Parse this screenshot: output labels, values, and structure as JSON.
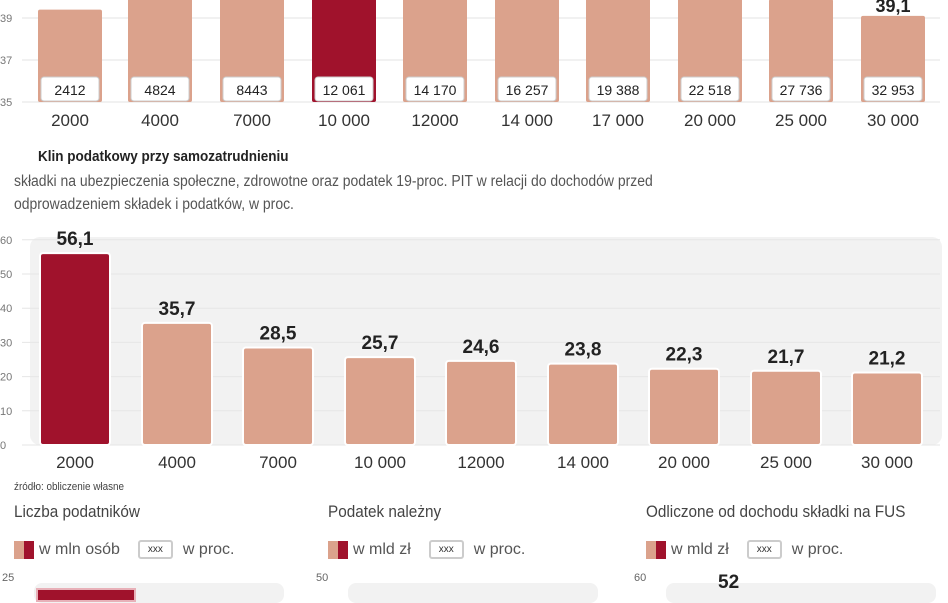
{
  "colors": {
    "bar": "#dba28c",
    "highlight": "#a0122c",
    "panel": "#f2f2f2",
    "label_box": "#ffffff"
  },
  "chart_data": [
    {
      "type": "bar",
      "categories": [
        "2000",
        "4000",
        "7000",
        "10 000",
        "12000",
        "14 000",
        "17 000",
        "20 000",
        "25 000",
        "30 000"
      ],
      "values": [
        39.4,
        null,
        null,
        null,
        null,
        null,
        null,
        null,
        39.9,
        39.1
      ],
      "data_labels": [
        "",
        "",
        "",
        "",
        "",
        "",
        "",
        "",
        "",
        "39,1"
      ],
      "box_labels": [
        "2412",
        "4824",
        "8443",
        "12 061",
        "14 170",
        "16 257",
        "19 388",
        "22 518",
        "27 736",
        "32 953"
      ],
      "highlight_index": 3,
      "yticks": [
        "35",
        "37",
        "39"
      ],
      "ylim": [
        35,
        40
      ],
      "grid": true
    },
    {
      "type": "bar",
      "title": "Klin podatkowy przy samozatrudnieniu",
      "subtitle_lines": [
        "składki na ubezpieczenia społeczne, zdrowotne oraz podatek 19-proc. PIT w relacji do dochodów przed",
        "odprowadzeniem składek i podatków, w proc."
      ],
      "categories": [
        "2000",
        "4000",
        "7000",
        "10 000",
        "12000",
        "14 000",
        "20 000",
        "25 000",
        "30 000"
      ],
      "values": [
        56.1,
        35.7,
        28.5,
        25.7,
        24.6,
        23.8,
        22.3,
        21.7,
        21.2
      ],
      "data_labels": [
        "56,1",
        "35,7",
        "28,5",
        "25,7",
        "24,6",
        "23,8",
        "22,3",
        "21,7",
        "21,2"
      ],
      "highlight_index": 0,
      "yticks": [
        "0",
        "10",
        "20",
        "30",
        "40",
        "50",
        "60"
      ],
      "ylim": [
        0,
        60
      ],
      "grid": true,
      "source": "źródło: obliczenie własne"
    }
  ],
  "bottom_panels": [
    {
      "title": "Liczba podatników",
      "legend_unit": "w mln osób",
      "legend_box": "xxx",
      "legend_pct": "w proc.",
      "ytick": "25"
    },
    {
      "title": "Podatek należny",
      "legend_unit": "w mld zł",
      "legend_box": "xxx",
      "legend_pct": "w proc.",
      "ytick": "50"
    },
    {
      "title": "Odliczone od dochodu składki na FUS",
      "legend_unit": "w mld zł",
      "legend_box": "xxx",
      "legend_pct": "w proc.",
      "ytick": "60",
      "first_label": "52"
    }
  ]
}
